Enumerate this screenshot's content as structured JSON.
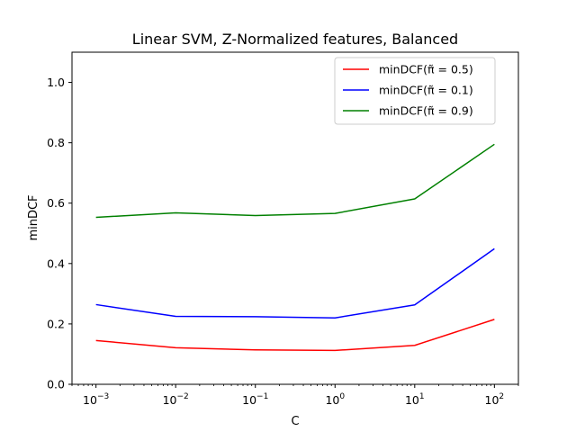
{
  "chart_data": {
    "type": "line",
    "title": "Linear SVM, Z-Normalized features, Balanced",
    "xlabel": "C",
    "ylabel": "minDCF",
    "xscale": "log",
    "x": [
      0.001,
      0.01,
      0.1,
      1,
      10,
      100
    ],
    "xlim": [
      0.0005,
      200
    ],
    "ylim": [
      0,
      1.1
    ],
    "yticks": [
      0.0,
      0.2,
      0.4,
      0.6,
      0.8,
      1.0
    ],
    "ytick_labels": [
      "0.0",
      "0.2",
      "0.4",
      "0.6",
      "0.8",
      "1.0"
    ],
    "xticks": [
      {
        "value": 0.001,
        "base": "10",
        "exp": "−3"
      },
      {
        "value": 0.01,
        "base": "10",
        "exp": "−2"
      },
      {
        "value": 0.1,
        "base": "10",
        "exp": "−1"
      },
      {
        "value": 1,
        "base": "10",
        "exp": "0"
      },
      {
        "value": 10,
        "base": "10",
        "exp": "1"
      },
      {
        "value": 100,
        "base": "10",
        "exp": "2"
      }
    ],
    "series": [
      {
        "name": "minDCF(π̃ = 0.5)",
        "color": "#ff0000",
        "values": [
          0.145,
          0.121,
          0.114,
          0.112,
          0.129,
          0.215
        ]
      },
      {
        "name": "minDCF(π̃ = 0.1)",
        "color": "#0000ff",
        "values": [
          0.264,
          0.225,
          0.224,
          0.22,
          0.263,
          0.449
        ]
      },
      {
        "name": "minDCF(π̃ = 0.9)",
        "color": "#008000",
        "values": [
          0.553,
          0.568,
          0.559,
          0.566,
          0.614,
          0.795
        ]
      }
    ],
    "legend": {
      "position": "top-right"
    },
    "grid": false
  }
}
